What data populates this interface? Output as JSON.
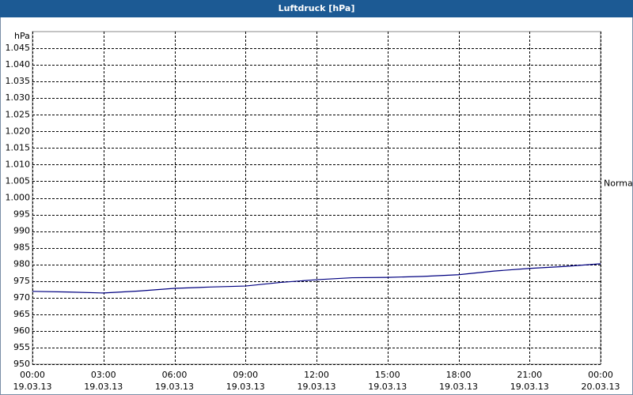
{
  "chart_data": {
    "type": "line",
    "title": "Luftdruck [hPa]",
    "y_unit": "hPa",
    "x": [
      0,
      1.5,
      3,
      4.5,
      6,
      7.5,
      9,
      10.5,
      12,
      13.5,
      15,
      16.5,
      18,
      19.5,
      21,
      22.5,
      24
    ],
    "series": [
      {
        "color": "#000080",
        "values": [
          971.9,
          971.7,
          971.4,
          972.0,
          972.8,
          973.2,
          973.5,
          974.6,
          975.4,
          976.0,
          976.1,
          976.4,
          976.9,
          978.0,
          978.8,
          979.4,
          980.2
        ]
      }
    ],
    "xlim": [
      0,
      24
    ],
    "xticks": [
      {
        "value": 0,
        "label": "00:00\n19.03.13"
      },
      {
        "value": 3,
        "label": "03:00\n19.03.13"
      },
      {
        "value": 6,
        "label": "06:00\n19.03.13"
      },
      {
        "value": 9,
        "label": "09:00\n19.03.13"
      },
      {
        "value": 12,
        "label": "12:00\n19.03.13"
      },
      {
        "value": 15,
        "label": "15:00\n19.03.13"
      },
      {
        "value": 18,
        "label": "18:00\n19.03.13"
      },
      {
        "value": 21,
        "label": "21:00\n19.03.13"
      },
      {
        "value": 24,
        "label": "00:00\n20.03.13"
      }
    ],
    "ylim": [
      950,
      1050
    ],
    "yticks": [
      950,
      955,
      960,
      965,
      970,
      975,
      980,
      985,
      990,
      995,
      {
        "value": 1000,
        "label": "1.000"
      },
      {
        "value": 1005,
        "label": "1.005"
      },
      {
        "value": 1010,
        "label": "1.010"
      },
      {
        "value": 1015,
        "label": "1.015"
      },
      {
        "value": 1020,
        "label": "1.020"
      },
      {
        "value": 1025,
        "label": "1.025"
      },
      {
        "value": 1030,
        "label": "1.030"
      },
      {
        "value": 1035,
        "label": "1.035"
      },
      {
        "value": 1040,
        "label": "1.040"
      },
      {
        "value": 1045,
        "label": "1.045"
      }
    ],
    "reference": {
      "label": "Normal",
      "value": 1004.3
    },
    "grid": true
  }
}
